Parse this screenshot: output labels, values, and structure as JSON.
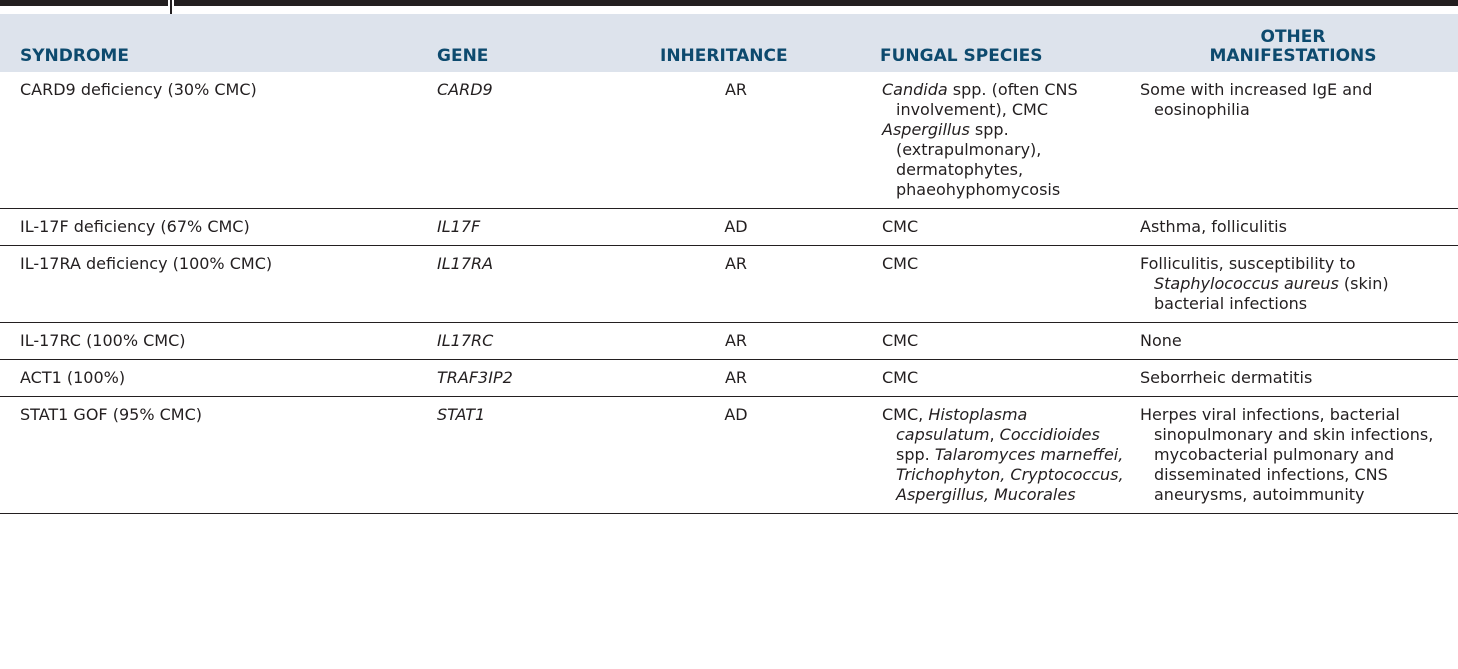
{
  "table": {
    "headers": {
      "syndrome": "SYNDROME",
      "gene": "GENE",
      "inheritance": "INHERITANCE",
      "fungal_species": "FUNGAL SPECIES",
      "other_line1": "OTHER",
      "other_line2": "MANIFESTATIONS"
    },
    "rows": [
      {
        "syndrome": "CARD9 deficiency (30% CMC)",
        "gene": "CARD9",
        "inheritance": "AR",
        "fungal": {
          "a_it": "Candida",
          "a_rest": " spp. (often CNS involvement), CMC",
          "b_it": "Aspergillus",
          "b_rest": " spp. (extrapulmonary), dermatophytes, phaeohyphomycosis"
        },
        "other": "Some with increased IgE and eosinophilia"
      },
      {
        "syndrome": "IL-17F deficiency (67% CMC)",
        "gene": "IL17F",
        "inheritance": "AD",
        "fungal_text": "CMC",
        "other": "Asthma, folliculitis"
      },
      {
        "syndrome": "IL-17RA deficiency (100% CMC)",
        "gene": "IL17RA",
        "inheritance": "AR",
        "fungal_text": "CMC",
        "other_parts": {
          "pre": "Folliculitis, susceptibility to ",
          "it": "Staphylococcus aureus",
          "post": " (skin) bacterial infections"
        }
      },
      {
        "syndrome": "IL-17RC (100% CMC)",
        "gene": "IL17RC",
        "inheritance": "AR",
        "fungal_text": "CMC",
        "other": "None"
      },
      {
        "syndrome": "ACT1 (100%)",
        "gene": "TRAF3IP2",
        "inheritance": "AR",
        "fungal_text": "CMC",
        "other": "Seborrheic dermatitis"
      },
      {
        "syndrome": "STAT1 GOF (95% CMC)",
        "gene": "STAT1",
        "inheritance": "AD",
        "fungal_parts": {
          "pre": "CMC, ",
          "it1": "Histoplasma capsulatum",
          "mid": ", ",
          "it2": "Coccidioides",
          "mid2": " spp. ",
          "it3": "Talaromyces marneffei, Trichophyton, Cryptococcus, Aspergillus, Mucorales"
        },
        "other": "Herpes viral infections, bacterial sinopulmonary and skin infections, mycobacterial pulmonary and disseminated infections, CNS aneurysms, autoimmunity"
      }
    ]
  }
}
